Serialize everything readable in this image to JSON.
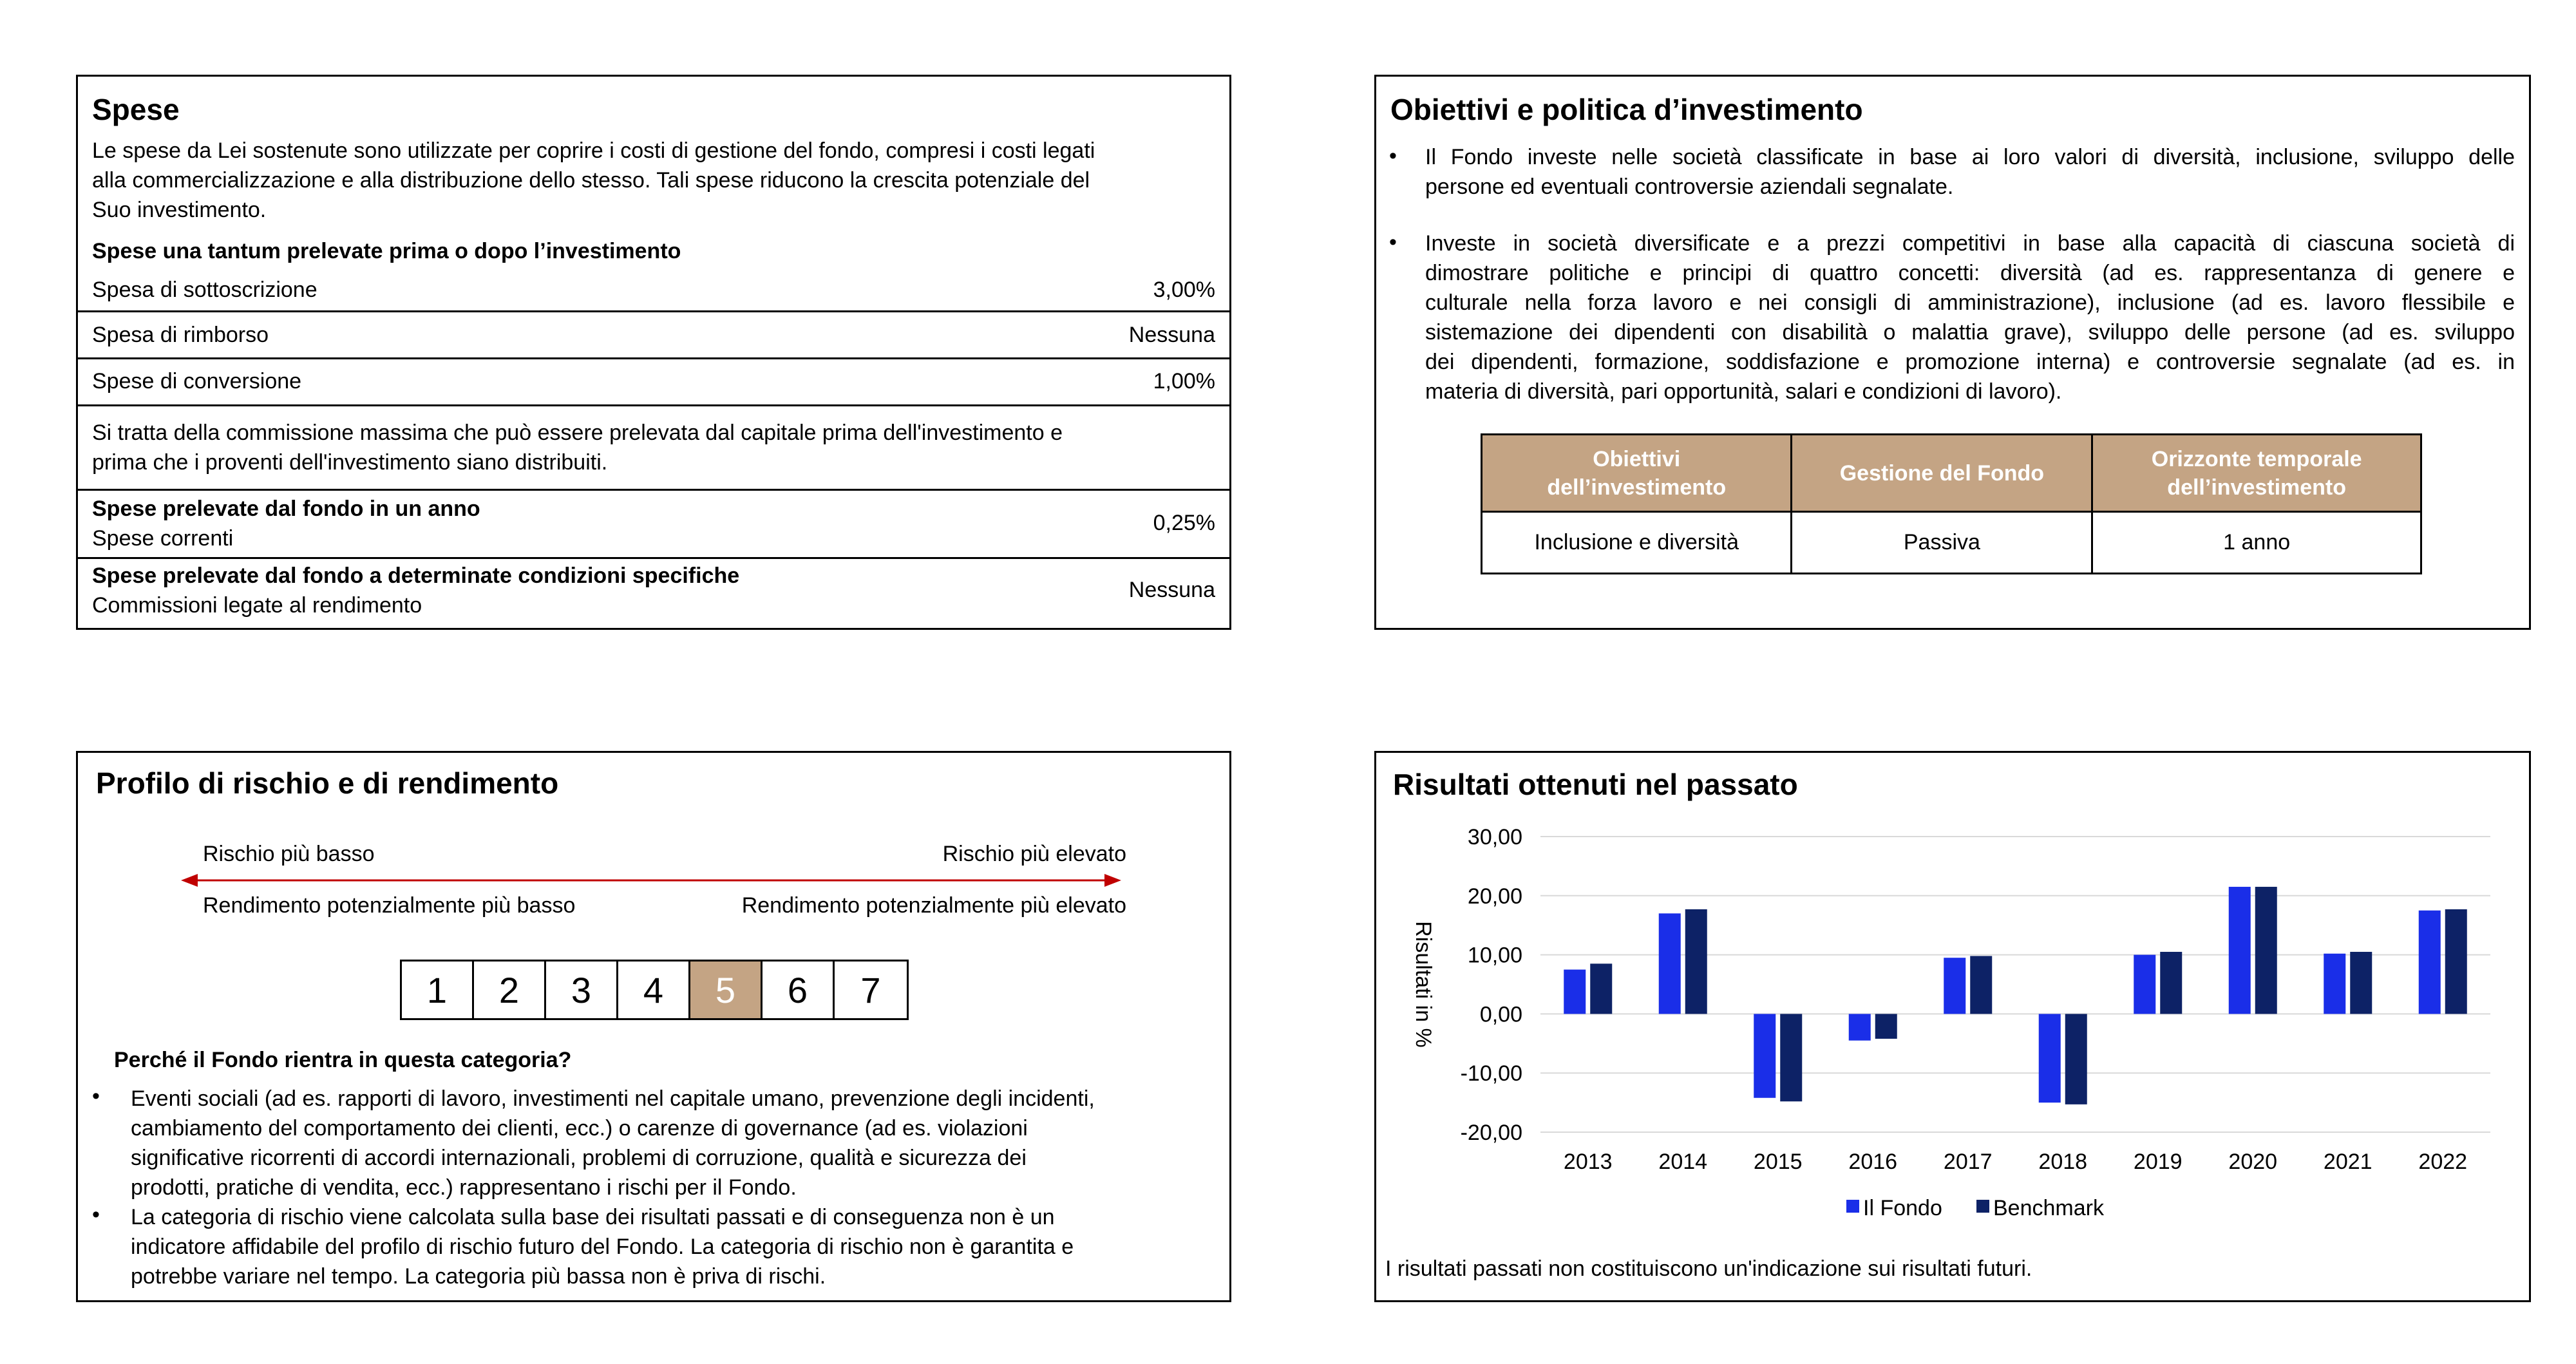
{
  "spese": {
    "title": "Spese",
    "intro_lines": [
      "Le spese da Lei sostenute sono utilizzate per coprire i costi di gestione del fondo, compresi i costi legati",
      "alla commercializzazione e alla distribuzione dello stesso. Tali spese riducono la crescita potenziale del",
      "Suo investimento."
    ],
    "una_tantum_heading": "Spese una tantum prelevate prima o dopo l’investimento",
    "rows": [
      {
        "label": "Spesa di sottoscrizione",
        "value": "3,00%"
      },
      {
        "label": "Spesa di rimborso",
        "value": "Nessuna"
      },
      {
        "label": "Spese di conversione",
        "value": "1,00%"
      }
    ],
    "note_lines": [
      "Si tratta della commissione massima che può essere prelevata dal capitale prima dell'investimento e",
      "prima che i proventi dell'investimento siano distribuiti."
    ],
    "annual_heading": "Spese prelevate dal fondo in un anno",
    "annual_label": "Spese correnti",
    "annual_value": "0,25%",
    "specific_heading": "Spese prelevate dal fondo a determinate condizioni specifiche",
    "specific_label": "Commissioni legate al rendimento",
    "specific_value": "Nessuna"
  },
  "obiettivi": {
    "title": "Obiettivi e politica d’investimento",
    "bullet1_lines": [
      "Il Fondo investe nelle società classificate in base ai loro valori di diversità, inclusione, sviluppo delle",
      "persone ed eventuali controversie aziendali segnalate."
    ],
    "bullet2_lines": [
      "Investe in società diversificate e a prezzi competitivi in base alla capacità di ciascuna società di",
      "dimostrare politiche e principi di quattro concetti: diversità (ad es. rappresentanza di genere e",
      "culturale nella forza lavoro e nei consigli di amministrazione), inclusione (ad es. lavoro flessibile e",
      "sistemazione dei dipendenti con disabilità o malattia grave), sviluppo delle persone (ad es. sviluppo",
      "dei dipendenti, formazione, soddisfazione e promozione interna) e controversie segnalate (ad es. in",
      "materia di diversità, pari opportunità, salari e condizioni di lavoro)."
    ],
    "table_headers": [
      [
        "Obiettivi",
        "dell’investimento"
      ],
      [
        "Gestione del Fondo"
      ],
      [
        "Orizzonte temporale",
        "dell’investimento"
      ]
    ],
    "table_values": [
      "Inclusione e diversità",
      "Passiva",
      "1 anno"
    ]
  },
  "rischio": {
    "title": "Profilo di rischio e di rendimento",
    "low_risk": "Rischio più basso",
    "high_risk": "Rischio più elevato",
    "low_return": "Rendimento potenzialmente più basso",
    "high_return": "Rendimento potenzialmente più elevato",
    "scale": [
      "1",
      "2",
      "3",
      "4",
      "5",
      "6",
      "7"
    ],
    "selected": "5",
    "accent": "#c4a484",
    "arrow_color": "#c00000",
    "why_heading": "Perché il Fondo rientra in questa categoria?",
    "bullet1_lines": [
      "Eventi sociali (ad es. rapporti di lavoro, investimenti nel capitale umano, prevenzione degli incidenti,",
      "cambiamento del comportamento dei clienti, ecc.) o carenze di governance (ad es. violazioni",
      "significative ricorrenti di accordi internazionali, problemi di corruzione, qualità e sicurezza dei",
      "prodotti, pratiche di vendita, ecc.) rappresentano i rischi per il Fondo."
    ],
    "bullet2_lines": [
      "La categoria di rischio viene calcolata sulla base dei risultati passati e di conseguenza non è un",
      "indicatore affidabile del profilo di rischio futuro del Fondo. La categoria di rischio non è garantita e",
      "potrebbe variare nel tempo. La categoria più bassa non è priva di rischi."
    ]
  },
  "risultati": {
    "title": "Risultati ottenuti nel passato",
    "footnote": "I risultati passati non costituiscono un'indicazione sui risultati futuri."
  },
  "chart_data": {
    "type": "bar",
    "title": "Risultati ottenuti nel passato",
    "xlabel": "",
    "ylabel": "Risultati in %",
    "categories": [
      "2013",
      "2014",
      "2015",
      "2016",
      "2017",
      "2018",
      "2019",
      "2020",
      "2021",
      "2022"
    ],
    "series": [
      {
        "name": "Il Fondo",
        "color": "#1a2ee8",
        "values": [
          7.5,
          17.0,
          -14.2,
          -4.5,
          9.5,
          -15.0,
          10.0,
          21.5,
          10.2,
          17.5
        ]
      },
      {
        "name": "Benchmark",
        "color": "#0d2266",
        "values": [
          8.5,
          17.7,
          -14.8,
          -4.2,
          9.8,
          -15.3,
          10.5,
          21.5,
          10.5,
          17.7
        ]
      }
    ],
    "ylim": [
      -20,
      30
    ],
    "yticks": [
      "30,00",
      "20,00",
      "10,00",
      "0,00",
      "-10,00",
      "-20,00"
    ],
    "ytick_values": [
      30,
      20,
      10,
      0,
      -10,
      -20
    ],
    "grid": true,
    "legend_position": "bottom"
  }
}
